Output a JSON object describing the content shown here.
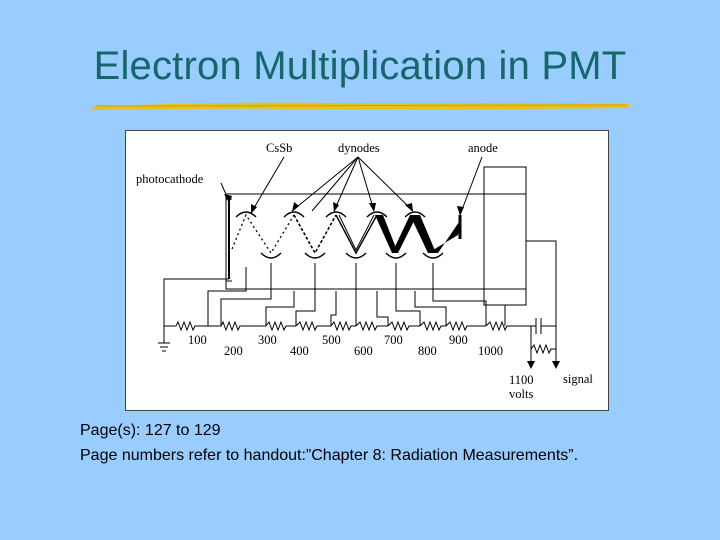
{
  "slide": {
    "title": "Electron Multiplication in PMT",
    "caption_line1": "Page(s): 127 to 129",
    "caption_line2": "Page numbers refer to handout:”Chapter 8: Radiation Measurements”."
  },
  "diagram": {
    "labels": {
      "photocathode": "photocathode",
      "cssb": "CsSb",
      "dynodes": "dynodes",
      "anode": "anode",
      "supply": "1100",
      "supply_unit": "volts",
      "signal": "signal"
    },
    "voltages": [
      "100",
      "200",
      "300",
      "400",
      "500",
      "600",
      "700",
      "800",
      "900",
      "1000"
    ]
  },
  "colors": {
    "background": "#99ccff",
    "title": "#16666a",
    "underline": "#e8c21a"
  }
}
